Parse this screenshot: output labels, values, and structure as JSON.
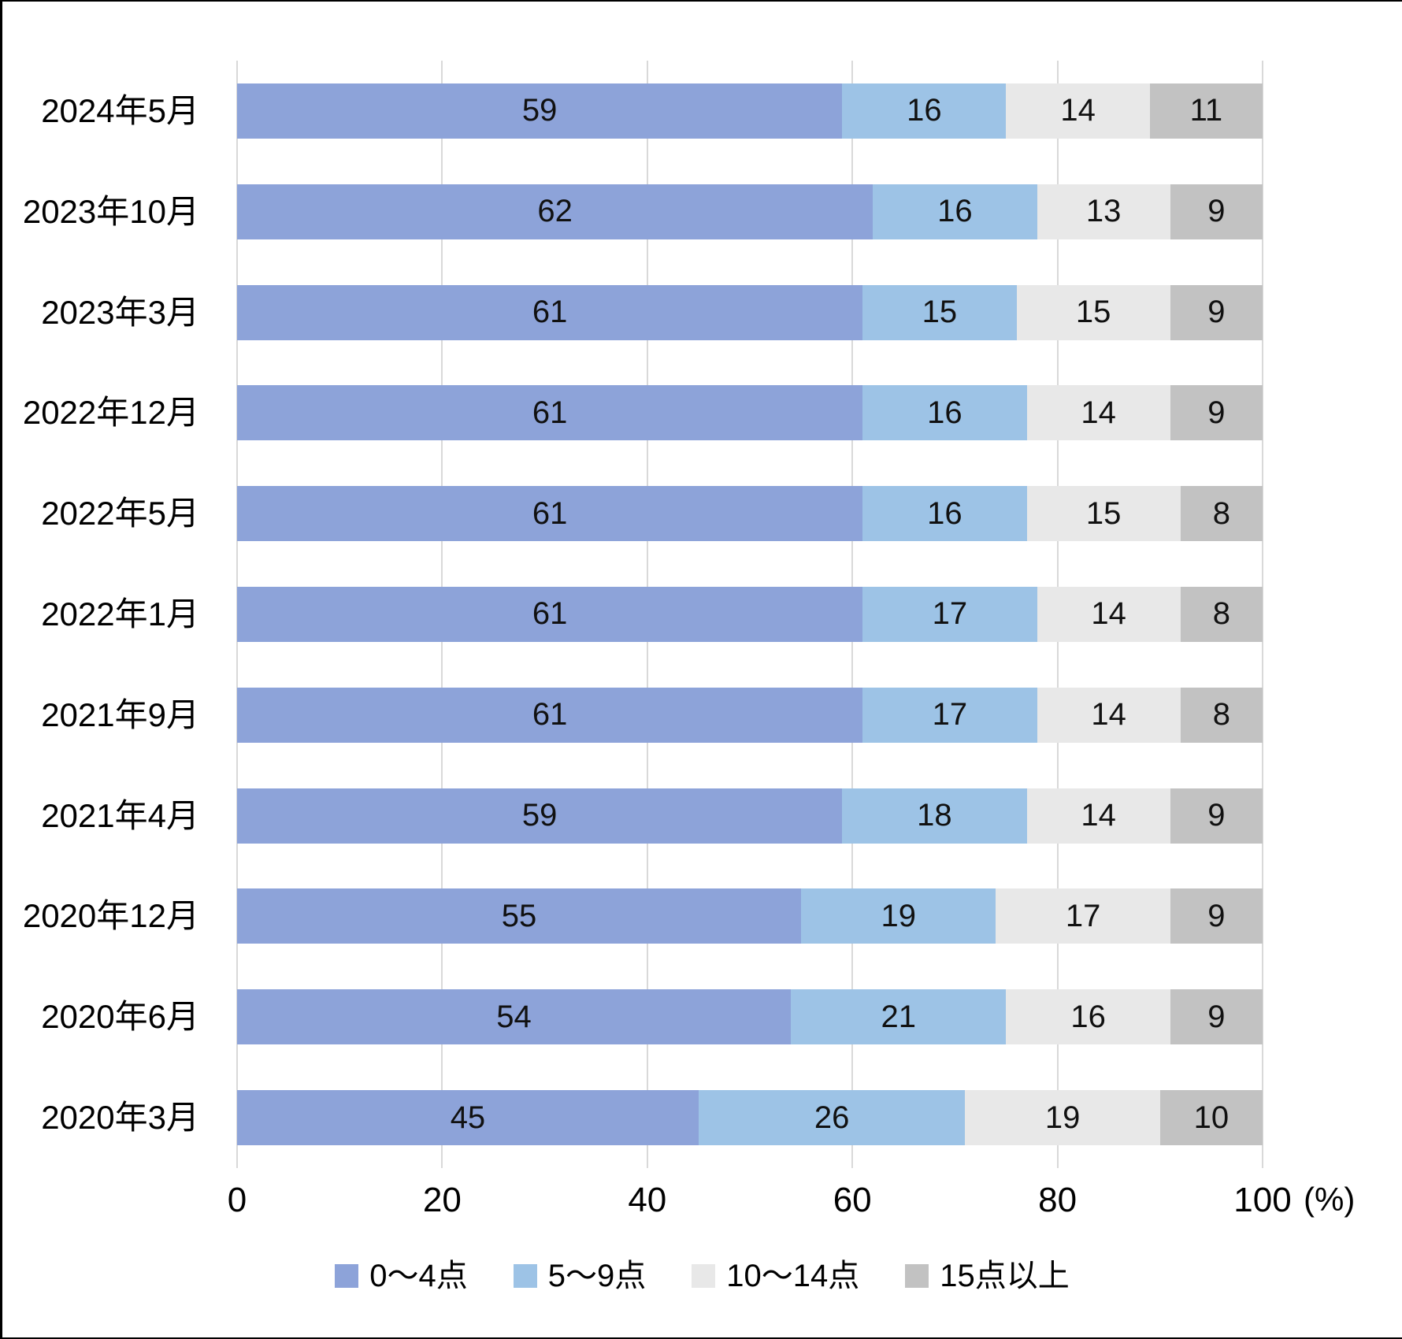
{
  "chart_data": {
    "type": "bar",
    "orientation": "horizontal-stacked",
    "title": "",
    "xlabel": "(%)",
    "ylabel": "",
    "xlim": [
      0,
      100
    ],
    "x_ticks": [
      0,
      20,
      40,
      60,
      80,
      100
    ],
    "grid": true,
    "legend_position": "bottom",
    "categories": [
      "2024年5月",
      "2023年10月",
      "2023年3月",
      "2022年12月",
      "2022年5月",
      "2022年1月",
      "2021年9月",
      "2021年4月",
      "2020年12月",
      "2020年6月",
      "2020年3月"
    ],
    "series": [
      {
        "name": "0〜4点",
        "color": "#8da3d9",
        "values": [
          59,
          62,
          61,
          61,
          61,
          61,
          61,
          59,
          55,
          54,
          45
        ]
      },
      {
        "name": "5〜9点",
        "color": "#9dc3e6",
        "values": [
          16,
          16,
          15,
          16,
          16,
          17,
          17,
          18,
          19,
          21,
          26
        ]
      },
      {
        "name": "10〜14点",
        "color": "#e8e8e8",
        "values": [
          14,
          13,
          15,
          14,
          15,
          14,
          14,
          14,
          17,
          16,
          19
        ]
      },
      {
        "name": "15点以上",
        "color": "#c2c2c2",
        "values": [
          11,
          9,
          9,
          9,
          8,
          8,
          8,
          9,
          9,
          9,
          10
        ]
      }
    ]
  },
  "colors": {
    "gridline": "#d9d9d9",
    "text": "#000000",
    "background": "#ffffff",
    "frame_border": "#000000"
  }
}
